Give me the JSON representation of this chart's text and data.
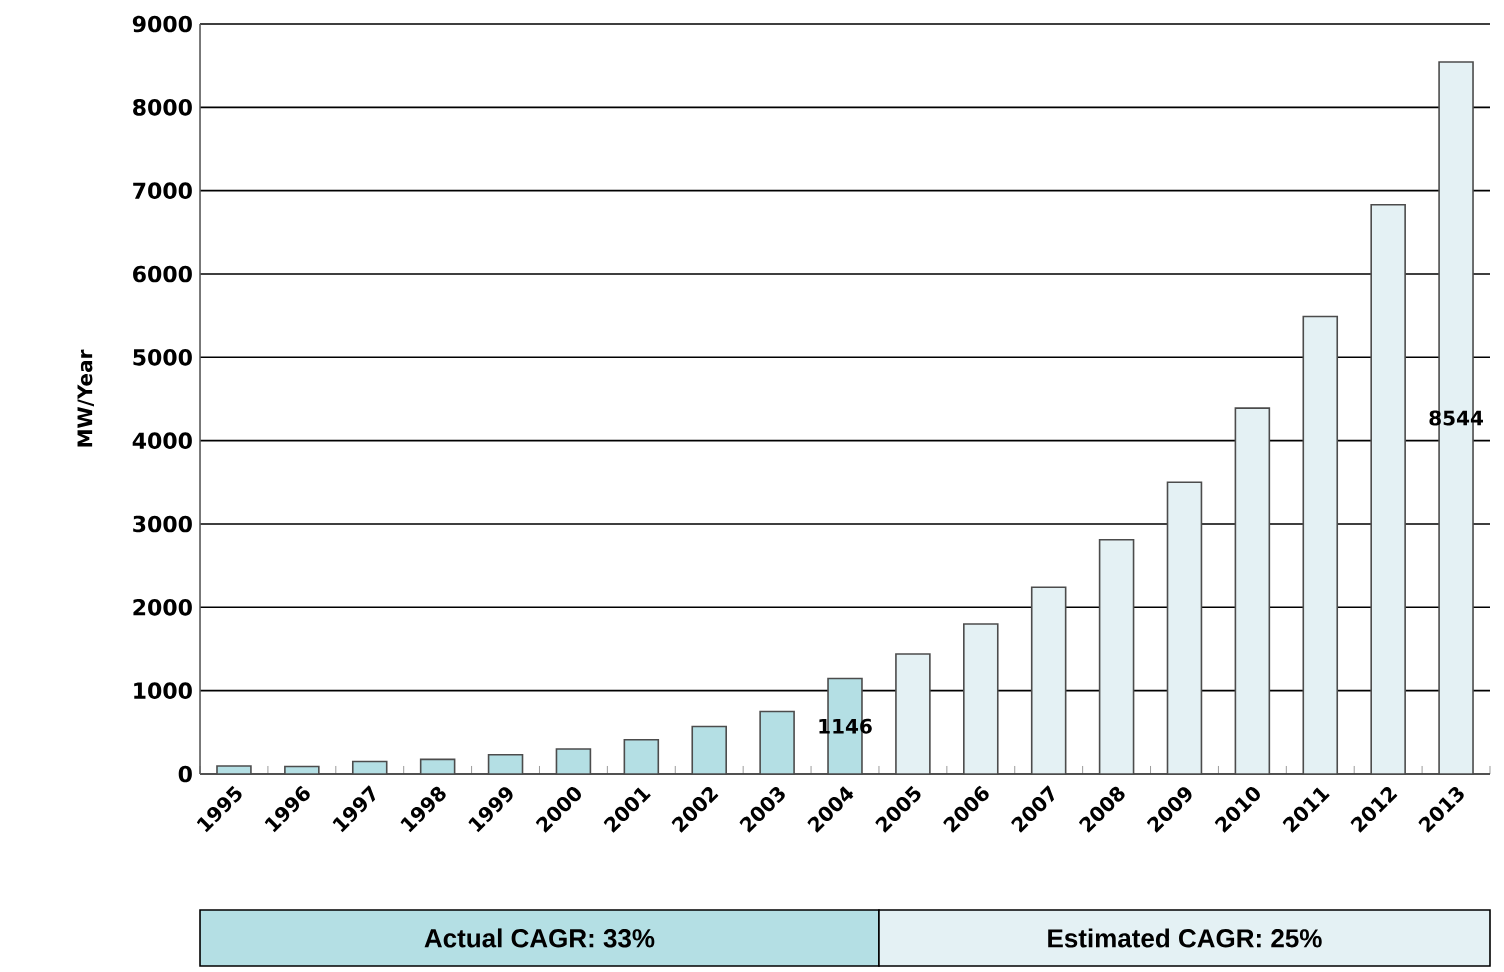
{
  "chart_data": {
    "type": "bar",
    "ylabel": "MW/Year",
    "categories": [
      "1995",
      "1996",
      "1997",
      "1998",
      "1999",
      "2000",
      "2001",
      "2002",
      "2003",
      "2004",
      "2005",
      "2006",
      "2007",
      "2008",
      "2009",
      "2010",
      "2011",
      "2012",
      "2013"
    ],
    "ylim": [
      0,
      9000
    ],
    "yticks": [
      0,
      1000,
      2000,
      3000,
      4000,
      5000,
      6000,
      7000,
      8000,
      9000
    ],
    "grid": "y",
    "legend": "bottom",
    "series": [
      {
        "name": "Actual CAGR: 33%",
        "color": "#b4dfe4",
        "values": [
          95,
          90,
          150,
          175,
          230,
          300,
          410,
          570,
          750,
          1146,
          null,
          null,
          null,
          null,
          null,
          null,
          null,
          null,
          null
        ],
        "value_labels": [
          null,
          null,
          null,
          null,
          null,
          null,
          null,
          null,
          null,
          "1146",
          null,
          null,
          null,
          null,
          null,
          null,
          null,
          null,
          null
        ]
      },
      {
        "name": "Estimated CAGR: 25%",
        "color": "#e4f1f4",
        "values": [
          null,
          null,
          null,
          null,
          null,
          null,
          null,
          null,
          null,
          null,
          1440,
          1800,
          2240,
          2810,
          3500,
          4390,
          5490,
          6830,
          8544
        ],
        "value_labels": [
          null,
          null,
          null,
          null,
          null,
          null,
          null,
          null,
          null,
          null,
          null,
          null,
          null,
          null,
          null,
          null,
          null,
          null,
          "8544"
        ]
      }
    ]
  }
}
